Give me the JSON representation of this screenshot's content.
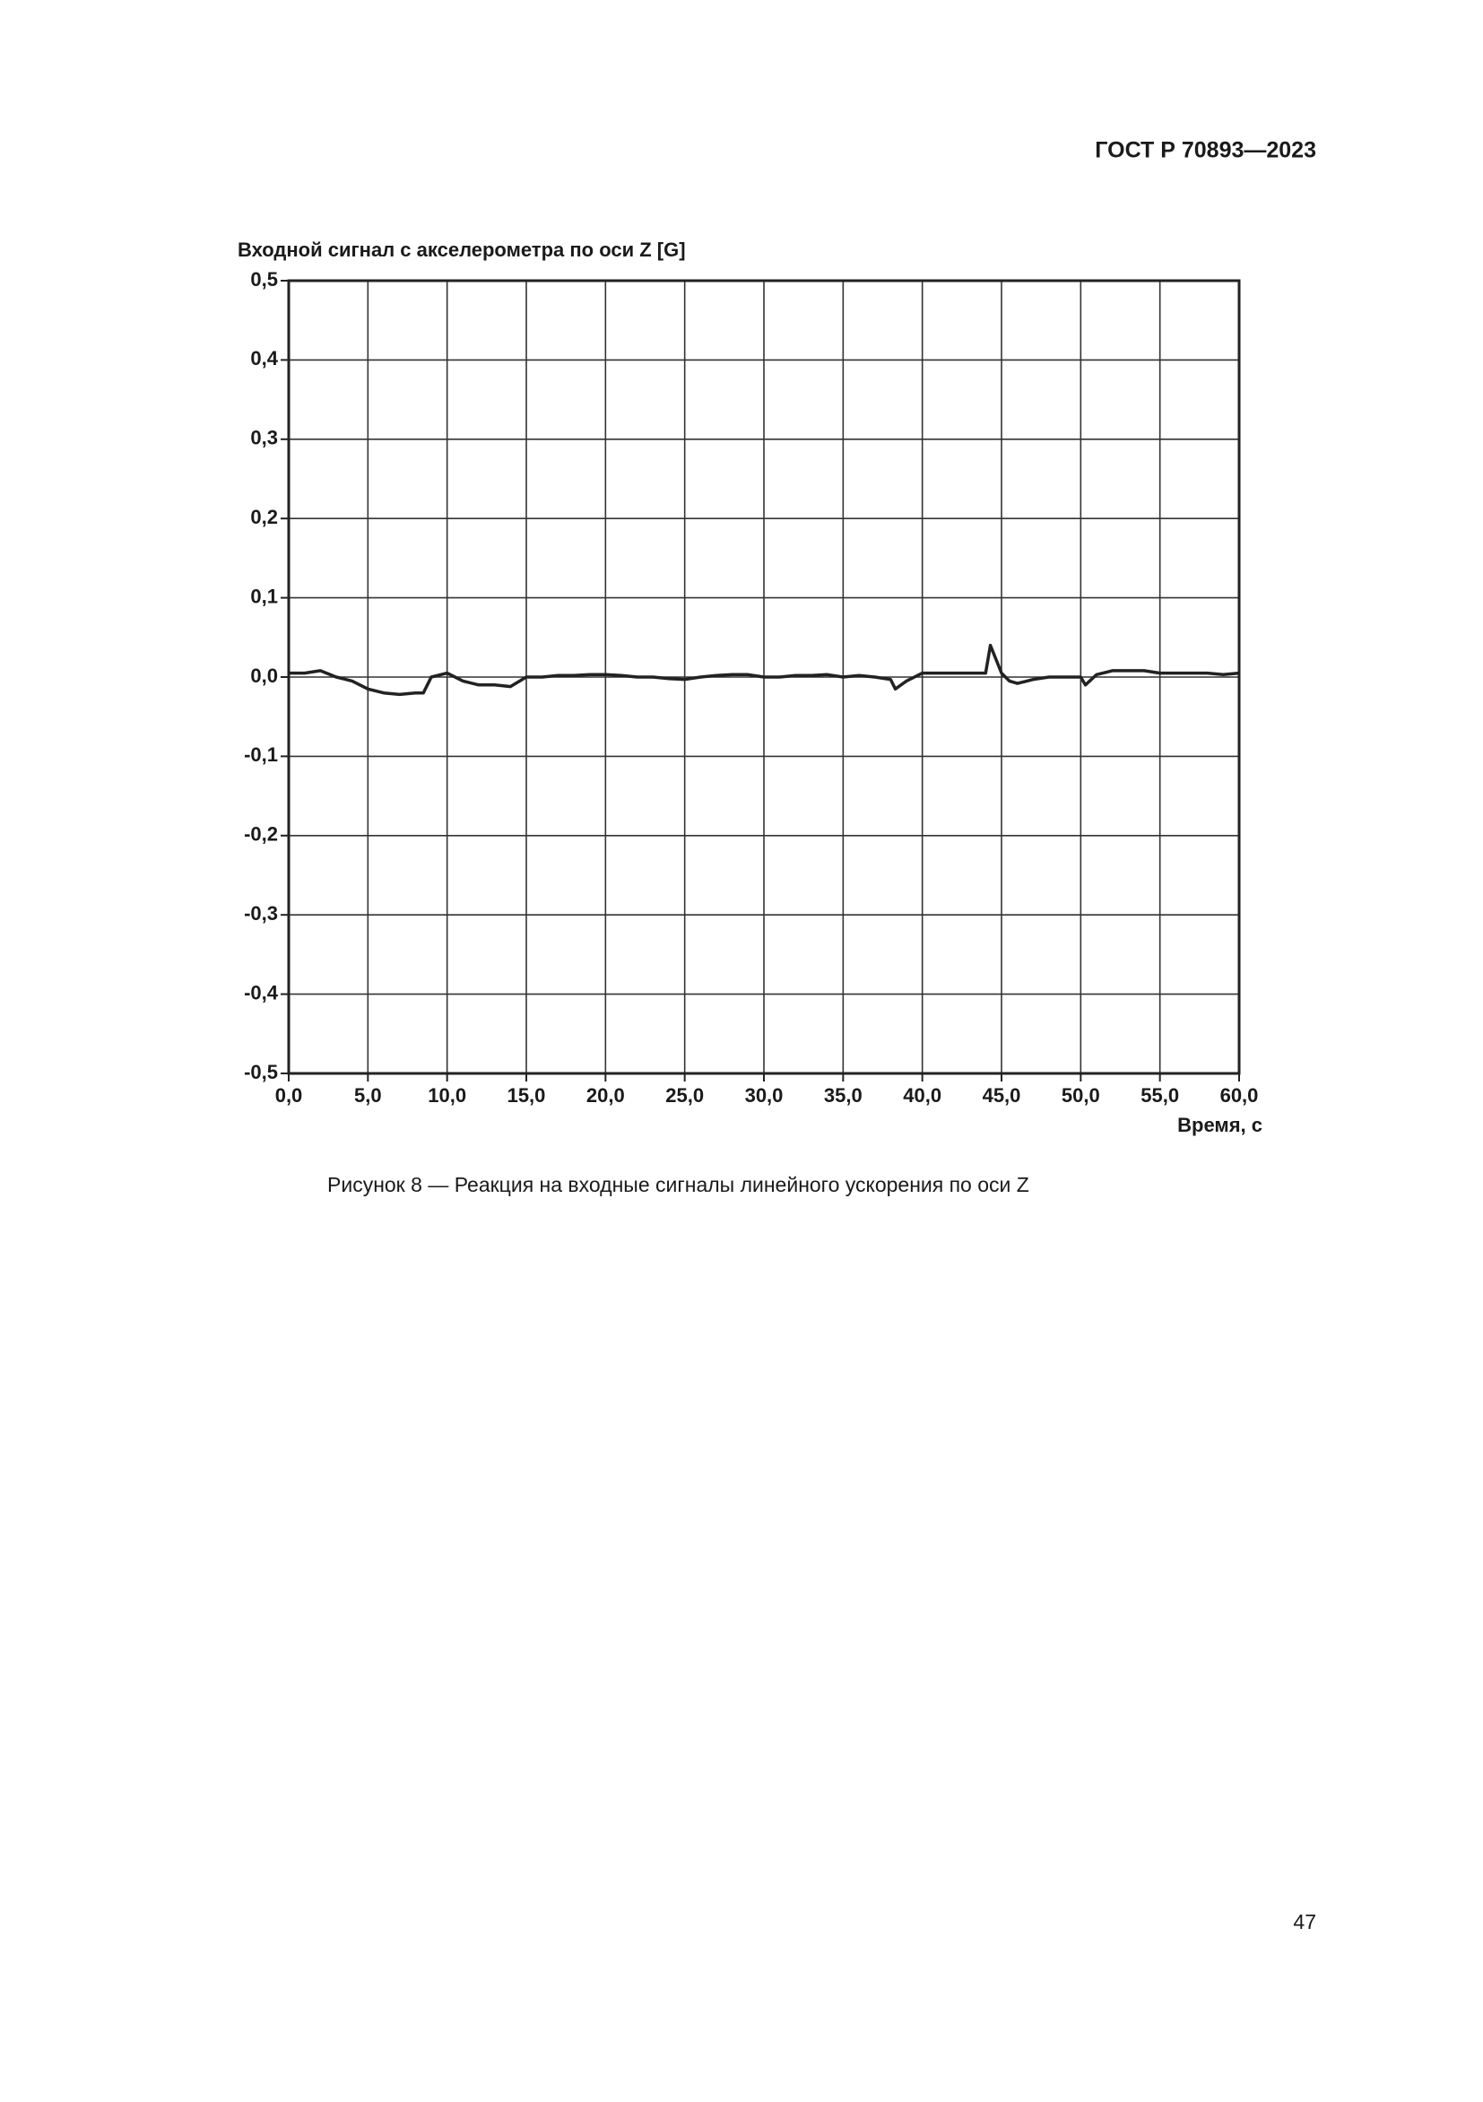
{
  "page": {
    "header": "ГОСТ Р 70893—2023",
    "caption": "Рисунок 8 — Реакция на входные сигналы линейного ускорения по оси Z",
    "page_number": "47"
  },
  "chart_data": {
    "type": "line",
    "title": "Входной сигнал с акселерометра по оси Z [G]",
    "x_label": "Время, с",
    "xlim": [
      0,
      60
    ],
    "ylim": [
      -0.5,
      0.5
    ],
    "grid": true,
    "xticks": [
      {
        "value": 0,
        "label": "0,0"
      },
      {
        "value": 5,
        "label": "5,0"
      },
      {
        "value": 10,
        "label": "10,0"
      },
      {
        "value": 15,
        "label": "15,0"
      },
      {
        "value": 20,
        "label": "20,0"
      },
      {
        "value": 25,
        "label": "25,0"
      },
      {
        "value": 30,
        "label": "30,0"
      },
      {
        "value": 35,
        "label": "35,0"
      },
      {
        "value": 40,
        "label": "40,0"
      },
      {
        "value": 45,
        "label": "45,0"
      },
      {
        "value": 50,
        "label": "50,0"
      },
      {
        "value": 55,
        "label": "55,0"
      },
      {
        "value": 60,
        "label": "60,0"
      }
    ],
    "yticks": [
      {
        "value": 0.5,
        "label": "0,5"
      },
      {
        "value": 0.4,
        "label": "0,4"
      },
      {
        "value": 0.3,
        "label": "0,3"
      },
      {
        "value": 0.2,
        "label": "0,2"
      },
      {
        "value": 0.1,
        "label": "0,1"
      },
      {
        "value": 0,
        "label": "0,0"
      },
      {
        "value": -0.1,
        "label": "-0,1"
      },
      {
        "value": -0.2,
        "label": "-0,2"
      },
      {
        "value": -0.3,
        "label": "-0,3"
      },
      {
        "value": -0.4,
        "label": "-0,4"
      },
      {
        "value": -0.5,
        "label": "-0,5"
      }
    ],
    "x": [
      0,
      1,
      2,
      3,
      4,
      5,
      6,
      7,
      8,
      8.5,
      9,
      10,
      11,
      12,
      13,
      14,
      15,
      16,
      17,
      18,
      19,
      20,
      21,
      22,
      23,
      24,
      25,
      26,
      27,
      28,
      29,
      30,
      31,
      32,
      33,
      34,
      35,
      36,
      37,
      38,
      38.3,
      39,
      40,
      41,
      42,
      43,
      44,
      44.3,
      45,
      45.5,
      46,
      47,
      48,
      49,
      50,
      50.3,
      51,
      52,
      53,
      54,
      55,
      56,
      57,
      58,
      59,
      60
    ],
    "series": [
      {
        "name": "Z",
        "color": "#222222",
        "values": [
          0.005,
          0.005,
          0.008,
          0.0,
          -0.005,
          -0.015,
          -0.02,
          -0.022,
          -0.02,
          -0.02,
          0.0,
          0.005,
          -0.005,
          -0.01,
          -0.01,
          -0.012,
          0.0,
          0.0,
          0.002,
          0.002,
          0.003,
          0.003,
          0.002,
          0.0,
          0.0,
          -0.002,
          -0.003,
          0.0,
          0.002,
          0.003,
          0.003,
          0.0,
          0.0,
          0.002,
          0.002,
          0.003,
          0.0,
          0.002,
          0.0,
          -0.003,
          -0.015,
          -0.005,
          0.005,
          0.005,
          0.005,
          0.005,
          0.005,
          0.04,
          0.005,
          -0.005,
          -0.008,
          -0.003,
          0.0,
          0.0,
          0.0,
          -0.01,
          0.003,
          0.008,
          0.008,
          0.008,
          0.005,
          0.005,
          0.005,
          0.005,
          0.003,
          0.005
        ]
      }
    ]
  }
}
